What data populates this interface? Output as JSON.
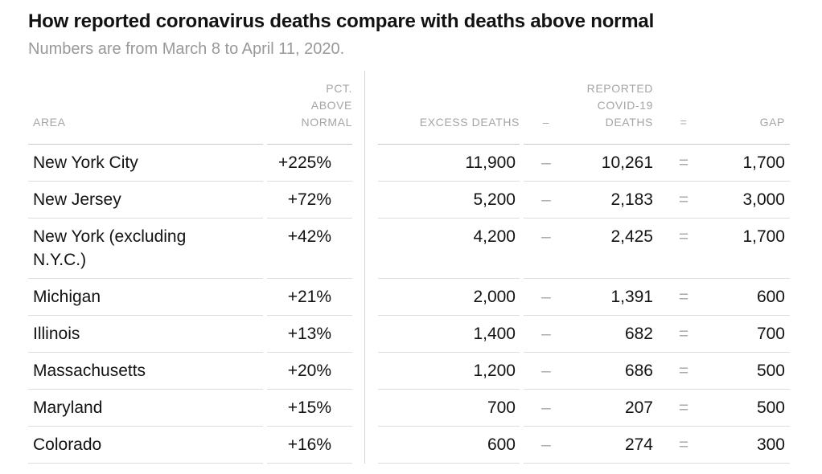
{
  "header": {
    "title": "How reported coronavirus deaths compare with deaths above normal",
    "subtitle": "Numbers are from March 8 to April 11, 2020."
  },
  "table": {
    "columns": {
      "area": "AREA",
      "pct_above_normal": "PCT.\nABOVE\nNORMAL",
      "excess_deaths": "EXCESS DEATHS",
      "reported_covid19_deaths": "REPORTED\nCOVID-19\nDEATHS",
      "gap": "GAP"
    },
    "operators": {
      "minus": "–",
      "equals": "="
    },
    "rows": [
      {
        "area": "New York City",
        "pct": "+225%",
        "excess": "11,900",
        "reported": "10,261",
        "gap": "1,700"
      },
      {
        "area": "New Jersey",
        "pct": "+72%",
        "excess": "5,200",
        "reported": "2,183",
        "gap": "3,000"
      },
      {
        "area": "New York (excluding N.Y.C.)",
        "pct": "+42%",
        "excess": "4,200",
        "reported": "2,425",
        "gap": "1,700"
      },
      {
        "area": "Michigan",
        "pct": "+21%",
        "excess": "2,000",
        "reported": "1,391",
        "gap": "600"
      },
      {
        "area": "Illinois",
        "pct": "+13%",
        "excess": "1,400",
        "reported": "682",
        "gap": "700"
      },
      {
        "area": "Massachusetts",
        "pct": "+20%",
        "excess": "1,200",
        "reported": "686",
        "gap": "500"
      },
      {
        "area": "Maryland",
        "pct": "+15%",
        "excess": "700",
        "reported": "207",
        "gap": "500"
      },
      {
        "area": "Colorado",
        "pct": "+16%",
        "excess": "600",
        "reported": "274",
        "gap": "300"
      }
    ]
  },
  "chart_data": {
    "type": "table",
    "title": "How reported coronavirus deaths compare with deaths above normal",
    "subtitle": "Numbers are from March 8 to April 11, 2020.",
    "columns": [
      "AREA",
      "PCT. ABOVE NORMAL",
      "EXCESS DEATHS",
      "REPORTED COVID-19 DEATHS",
      "GAP"
    ],
    "rows": [
      {
        "area": "New York City",
        "pct_above_normal_pct": 225,
        "excess_deaths": 11900,
        "reported_covid19_deaths": 10261,
        "gap": 1700
      },
      {
        "area": "New Jersey",
        "pct_above_normal_pct": 72,
        "excess_deaths": 5200,
        "reported_covid19_deaths": 2183,
        "gap": 3000
      },
      {
        "area": "New York (excluding N.Y.C.)",
        "pct_above_normal_pct": 42,
        "excess_deaths": 4200,
        "reported_covid19_deaths": 2425,
        "gap": 1700
      },
      {
        "area": "Michigan",
        "pct_above_normal_pct": 21,
        "excess_deaths": 2000,
        "reported_covid19_deaths": 1391,
        "gap": 600
      },
      {
        "area": "Illinois",
        "pct_above_normal_pct": 13,
        "excess_deaths": 1400,
        "reported_covid19_deaths": 682,
        "gap": 700
      },
      {
        "area": "Massachusetts",
        "pct_above_normal_pct": 20,
        "excess_deaths": 1200,
        "reported_covid19_deaths": 686,
        "gap": 500
      },
      {
        "area": "Maryland",
        "pct_above_normal_pct": 15,
        "excess_deaths": 700,
        "reported_covid19_deaths": 207,
        "gap": 500
      },
      {
        "area": "Colorado",
        "pct_above_normal_pct": 16,
        "excess_deaths": 600,
        "reported_covid19_deaths": 274,
        "gap": 300
      }
    ],
    "notes": {
      "relationship": "excess_deaths - reported_covid19_deaths = gap",
      "legend_position": "none",
      "grid": "horizontal row rules with center column divider"
    }
  }
}
